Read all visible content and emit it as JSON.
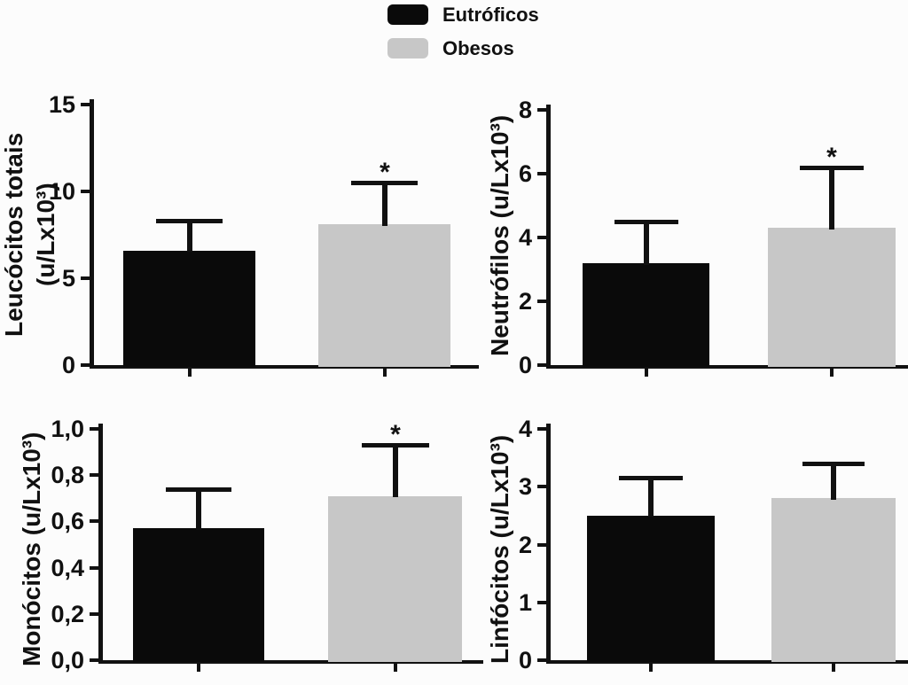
{
  "figure": {
    "background": "#fcfcfc",
    "text_color": "#111111",
    "sig_symbol": "*"
  },
  "legend": {
    "items": [
      {
        "label": "Eutróficos",
        "color": "#0a0a0a"
      },
      {
        "label": "Obesos",
        "color": "#c7c7c7"
      }
    ]
  },
  "chart_data": [
    {
      "type": "bar",
      "title": "",
      "ylabel": "Leucócitos totais (u/Lx10³)",
      "ylabel_lines": [
        "Leucócitos totais",
        "(u/Lx10³)"
      ],
      "ylim": [
        0,
        15
      ],
      "yticks": [
        {
          "value": 0,
          "label": "0"
        },
        {
          "value": 5,
          "label": "5"
        },
        {
          "value": 10,
          "label": "10"
        },
        {
          "value": 15,
          "label": "15"
        }
      ],
      "categories": [
        "Eutróficos",
        "Obesos"
      ],
      "bars": [
        {
          "group": "Eutróficos",
          "value": 6.6,
          "error_top": 8.3,
          "significant": false,
          "color": "#0a0a0a"
        },
        {
          "group": "Obesos",
          "value": 8.1,
          "error_top": 10.5,
          "significant": true,
          "color": "#c7c7c7"
        }
      ]
    },
    {
      "type": "bar",
      "title": "",
      "ylabel": "Neutrófilos (u/Lx10³)",
      "ylabel_lines": [
        "Neutrófilos (u/Lx10³)"
      ],
      "ylim": [
        0,
        8
      ],
      "yticks": [
        {
          "value": 0,
          "label": "0"
        },
        {
          "value": 2,
          "label": "2"
        },
        {
          "value": 4,
          "label": "4"
        },
        {
          "value": 6,
          "label": "6"
        },
        {
          "value": 8,
          "label": "8"
        }
      ],
      "categories": [
        "Eutróficos",
        "Obesos"
      ],
      "bars": [
        {
          "group": "Eutróficos",
          "value": 3.2,
          "error_top": 4.5,
          "significant": false,
          "color": "#0a0a0a"
        },
        {
          "group": "Obesos",
          "value": 4.3,
          "error_top": 6.2,
          "significant": true,
          "color": "#c7c7c7"
        }
      ]
    },
    {
      "type": "bar",
      "title": "",
      "ylabel": "Monócitos (u/Lx10³)",
      "ylabel_lines": [
        "Monócitos (u/Lx10³)"
      ],
      "ylim": [
        0,
        1.0
      ],
      "yticks": [
        {
          "value": 0.0,
          "label": "0,0"
        },
        {
          "value": 0.2,
          "label": "0,2"
        },
        {
          "value": 0.4,
          "label": "0,4"
        },
        {
          "value": 0.6,
          "label": "0,6"
        },
        {
          "value": 0.8,
          "label": "0,8"
        },
        {
          "value": 1.0,
          "label": "1,0"
        }
      ],
      "categories": [
        "Eutróficos",
        "Obesos"
      ],
      "bars": [
        {
          "group": "Eutróficos",
          "value": 0.57,
          "error_top": 0.74,
          "significant": false,
          "color": "#0a0a0a"
        },
        {
          "group": "Obesos",
          "value": 0.71,
          "error_top": 0.93,
          "significant": true,
          "color": "#c7c7c7"
        }
      ]
    },
    {
      "type": "bar",
      "title": "",
      "ylabel": "Linfócitos (u/Lx10³)",
      "ylabel_lines": [
        "Linfócitos (u/Lx10³)"
      ],
      "ylim": [
        0,
        4
      ],
      "yticks": [
        {
          "value": 0,
          "label": "0"
        },
        {
          "value": 1,
          "label": "1"
        },
        {
          "value": 2,
          "label": "2"
        },
        {
          "value": 3,
          "label": "3"
        },
        {
          "value": 4,
          "label": "4"
        }
      ],
      "categories": [
        "Eutróficos",
        "Obesos"
      ],
      "bars": [
        {
          "group": "Eutróficos",
          "value": 2.5,
          "error_top": 3.15,
          "significant": false,
          "color": "#0a0a0a"
        },
        {
          "group": "Obesos",
          "value": 2.8,
          "error_top": 3.4,
          "significant": false,
          "color": "#c7c7c7"
        }
      ]
    }
  ]
}
